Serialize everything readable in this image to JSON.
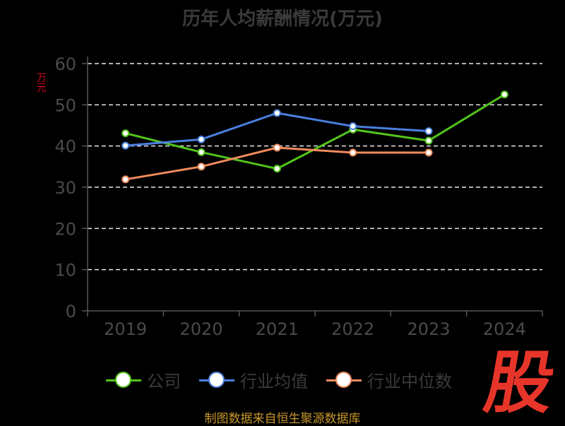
{
  "chart_data": {
    "type": "line",
    "title": "历年人均薪酬情况(万元)",
    "ylabel": "万元",
    "categories": [
      "2019",
      "2020",
      "2021",
      "2022",
      "2023",
      "2024"
    ],
    "ylim": [
      0,
      60
    ],
    "yticks": [
      0,
      10,
      20,
      30,
      40,
      50,
      60
    ],
    "grid": true,
    "legend_position": "bottom",
    "series": [
      {
        "name": "公司",
        "color": "#52c41a",
        "values": [
          43.1,
          38.5,
          34.5,
          44.0,
          41.3,
          52.5
        ]
      },
      {
        "name": "行业均值",
        "color": "#4a80e0",
        "values": [
          40.1,
          41.6,
          48.0,
          44.8,
          43.6,
          null
        ]
      },
      {
        "name": "行业中位数",
        "color": "#f08a5d",
        "values": [
          31.9,
          35.0,
          39.6,
          38.4,
          38.4,
          null
        ]
      }
    ]
  },
  "source": "制图数据来自恒生聚源数据库",
  "brand": "股"
}
